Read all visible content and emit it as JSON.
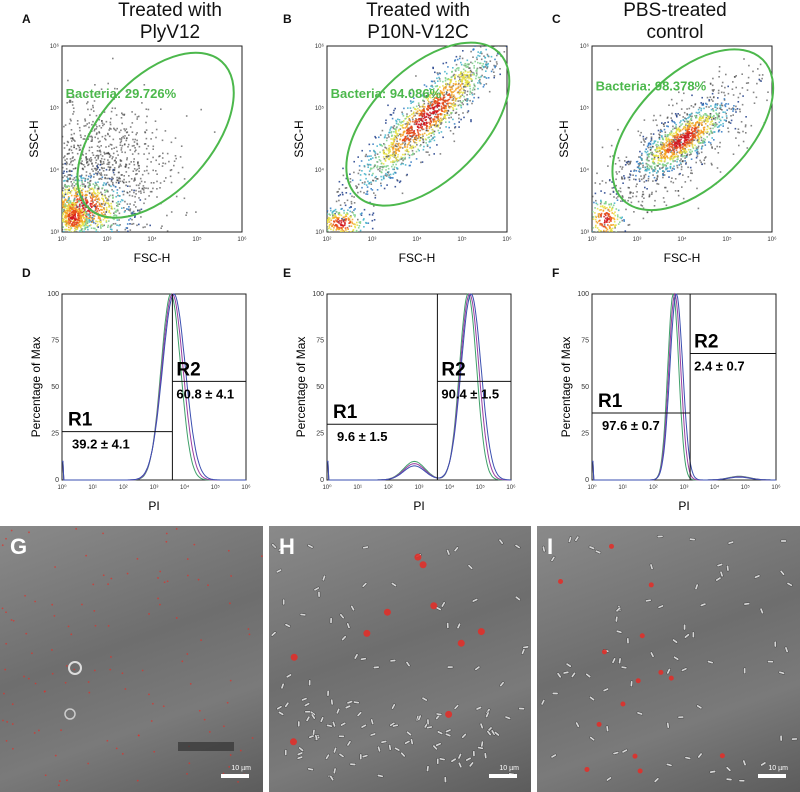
{
  "columns": [
    {
      "letter": "A",
      "title_lines": [
        "Treated with",
        "PlyV12"
      ]
    },
    {
      "letter": "B",
      "title_lines": [
        "Treated with",
        "P10N-V12C"
      ]
    },
    {
      "letter": "C",
      "title_lines": [
        "PBS-treated",
        "control"
      ]
    }
  ],
  "chart_data": [
    {
      "panel": "A",
      "type": "scatter",
      "subtype": "flow-cytometry-density",
      "xlabel": "FSC-H",
      "ylabel": "SSC-H",
      "xscale": "log",
      "yscale": "log",
      "xticks": [
        "10²",
        "10³",
        "10⁴",
        "10⁵",
        "10⁶"
      ],
      "yticks": [
        "10³",
        "10⁴",
        "10⁵",
        "10⁶"
      ],
      "gate_label": "Bacteria: 29.726%",
      "gate_percent": 29.726,
      "gate_color": "#4cb84c"
    },
    {
      "panel": "B",
      "type": "scatter",
      "subtype": "flow-cytometry-density",
      "xlabel": "FSC-H",
      "ylabel": "SSC-H",
      "xscale": "log",
      "yscale": "log",
      "xticks": [
        "10²",
        "10³",
        "10⁴",
        "10⁵",
        "10⁶"
      ],
      "yticks": [
        "10³",
        "10⁴",
        "10⁵",
        "10⁶"
      ],
      "gate_label": "Bacteria: 94.086%",
      "gate_percent": 94.086,
      "gate_color": "#4cb84c"
    },
    {
      "panel": "C",
      "type": "scatter",
      "subtype": "flow-cytometry-density",
      "xlabel": "FSC-H",
      "ylabel": "SSC-H",
      "xscale": "log",
      "yscale": "log",
      "xticks": [
        "10²",
        "10³",
        "10⁴",
        "10⁵",
        "10⁶"
      ],
      "yticks": [
        "10³",
        "10⁴",
        "10⁵",
        "10⁶"
      ],
      "gate_label": "Bacteria: 98.378%",
      "gate_percent": 98.378,
      "gate_color": "#4cb84c"
    },
    {
      "panel": "D",
      "type": "line",
      "subtype": "histogram",
      "xlabel": "PI",
      "ylabel": "Percentage of Max",
      "xscale": "log",
      "ylim": [
        0,
        100
      ],
      "xticks": [
        "10⁰",
        "10¹",
        "10²",
        "10³",
        "10⁴",
        "10⁵",
        "10⁶"
      ],
      "yticks": [
        "0",
        "25",
        "50",
        "75",
        "100"
      ],
      "peak_log": 3.6,
      "peak_width": 0.32,
      "regions": [
        {
          "name": "R1",
          "value_text": "39.2 ± 4.1",
          "level": 26
        },
        {
          "name": "R2",
          "value_text": "60.8 ± 4.1",
          "level": 53
        }
      ],
      "region_split_log": 3.6
    },
    {
      "panel": "E",
      "type": "line",
      "subtype": "histogram",
      "xlabel": "PI",
      "ylabel": "Percentage of Max",
      "xscale": "log",
      "ylim": [
        0,
        100
      ],
      "xticks": [
        "10⁰",
        "10¹",
        "10²",
        "10³",
        "10⁴",
        "10⁵",
        "10⁶"
      ],
      "yticks": [
        "0",
        "25",
        "50",
        "75",
        "100"
      ],
      "peak_log": 4.65,
      "peak_width": 0.28,
      "minor_peak_log": 2.85,
      "minor_peak_height": 10,
      "regions": [
        {
          "name": "R1",
          "value_text": "9.6 ± 1.5",
          "level": 30
        },
        {
          "name": "R2",
          "value_text": "90.4 ± 1.5",
          "level": 53
        }
      ],
      "region_split_log": 3.6
    },
    {
      "panel": "F",
      "type": "line",
      "subtype": "histogram",
      "xlabel": "PI",
      "ylabel": "Percentage of Max",
      "xscale": "log",
      "ylim": [
        0,
        100
      ],
      "xticks": [
        "10⁰",
        "10¹",
        "10²",
        "10³",
        "10⁴",
        "10⁵",
        "10⁶"
      ],
      "yticks": [
        "0",
        "25",
        "50",
        "75",
        "100"
      ],
      "peak_log": 2.7,
      "peak_width": 0.18,
      "minor_peak_log": 4.8,
      "minor_peak_height": 2,
      "regions": [
        {
          "name": "R1",
          "value_text": "97.6 ± 0.7",
          "level": 36
        },
        {
          "name": "R2",
          "value_text": "2.4 ± 0.7",
          "level": 68
        }
      ],
      "region_split_log": 3.2
    }
  ],
  "micrographs": [
    {
      "letter": "G",
      "scale_label": "10 µm"
    },
    {
      "letter": "H",
      "scale_label": "10 µm"
    },
    {
      "letter": "I",
      "scale_label": "10 µm"
    }
  ],
  "colors": {
    "gate": "#4cb84c",
    "line_blue": "#3a4fb0",
    "line_purple": "#9a3ea0",
    "line_green": "#3fa06a",
    "dots_red": "#e0302a"
  }
}
